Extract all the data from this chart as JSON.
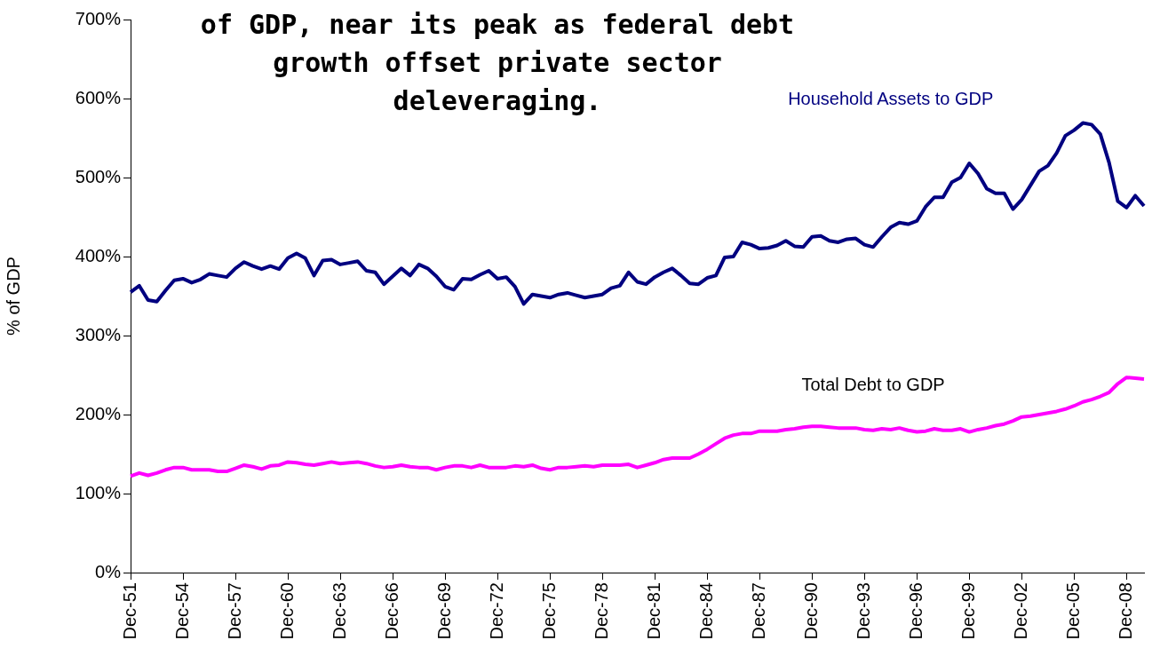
{
  "chart_data": {
    "type": "line",
    "title": "of GDP, near its peak as federal debt growth offset private sector deleveraging.",
    "ylabel": "% of GDP",
    "categories": [
      "Dec-51",
      null,
      null,
      null,
      null,
      null,
      "Dec-54",
      null,
      null,
      null,
      null,
      null,
      "Dec-57",
      null,
      null,
      null,
      null,
      null,
      "Dec-60",
      null,
      null,
      null,
      null,
      null,
      "Dec-63",
      null,
      null,
      null,
      null,
      null,
      "Dec-66",
      null,
      null,
      null,
      null,
      null,
      "Dec-69",
      null,
      null,
      null,
      null,
      null,
      "Dec-72",
      null,
      null,
      null,
      null,
      null,
      "Dec-75",
      null,
      null,
      null,
      null,
      null,
      "Dec-78",
      null,
      null,
      null,
      null,
      null,
      "Dec-81",
      null,
      null,
      null,
      null,
      null,
      "Dec-84",
      null,
      null,
      null,
      null,
      null,
      "Dec-87",
      null,
      null,
      null,
      null,
      null,
      "Dec-90",
      null,
      null,
      null,
      null,
      null,
      "Dec-93",
      null,
      null,
      null,
      null,
      null,
      "Dec-96",
      null,
      null,
      null,
      null,
      null,
      "Dec-99",
      null,
      null,
      null,
      null,
      null,
      "Dec-02",
      null,
      null,
      null,
      null,
      null,
      "Dec-05",
      null,
      null,
      null,
      null,
      null,
      "Dec-08",
      null,
      null
    ],
    "series": [
      {
        "name": "Household Assets to GDP",
        "color": "#000080",
        "values": [
          355,
          363,
          345,
          343,
          357,
          370,
          372,
          367,
          371,
          378,
          376,
          374,
          385,
          393,
          388,
          384,
          388,
          384,
          398,
          404,
          398,
          376,
          395,
          396,
          390,
          392,
          394,
          382,
          380,
          365,
          375,
          385,
          376,
          390,
          385,
          375,
          362,
          358,
          372,
          371,
          377,
          382,
          372,
          374,
          362,
          340,
          352,
          350,
          348,
          352,
          354,
          351,
          348,
          350,
          352,
          360,
          363,
          380,
          368,
          365,
          374,
          380,
          385,
          376,
          366,
          365,
          373,
          376,
          399,
          400,
          418,
          415,
          410,
          411,
          414,
          420,
          413,
          412,
          425,
          426,
          420,
          418,
          422,
          423,
          415,
          412,
          425,
          437,
          443,
          441,
          445,
          463,
          475,
          475,
          494,
          500,
          518,
          505,
          486,
          480,
          480,
          460,
          472,
          490,
          508,
          515,
          531,
          553,
          560,
          569,
          567,
          555,
          519,
          470,
          462,
          477,
          464
        ]
      },
      {
        "name": "Total Debt to GDP",
        "color": "#ff00ff",
        "values": [
          122,
          126,
          123,
          126,
          130,
          133,
          133,
          130,
          130,
          130,
          128,
          128,
          132,
          136,
          134,
          131,
          135,
          136,
          140,
          139,
          137,
          136,
          138,
          140,
          138,
          139,
          140,
          138,
          135,
          133,
          134,
          136,
          134,
          133,
          133,
          130,
          133,
          135,
          135,
          133,
          136,
          133,
          133,
          133,
          135,
          134,
          136,
          132,
          130,
          133,
          133,
          134,
          135,
          134,
          136,
          136,
          136,
          137,
          133,
          136,
          139,
          143,
          145,
          145,
          145,
          150,
          156,
          163,
          170,
          174,
          176,
          176,
          179,
          179,
          179,
          181,
          182,
          184,
          185,
          185,
          184,
          183,
          183,
          183,
          181,
          180,
          182,
          181,
          183,
          180,
          178,
          179,
          182,
          180,
          180,
          182,
          178,
          181,
          183,
          186,
          188,
          192,
          197,
          198,
          200,
          202,
          204,
          207,
          211,
          216,
          219,
          223,
          228,
          239,
          247,
          246,
          245
        ]
      }
    ],
    "ylim": [
      0,
      700
    ],
    "yticks": [
      {
        "value": 0,
        "label": "0%"
      },
      {
        "value": 100,
        "label": "100%"
      },
      {
        "value": 200,
        "label": "200%"
      },
      {
        "value": 300,
        "label": "300%"
      },
      {
        "value": 400,
        "label": "400%"
      },
      {
        "value": 500,
        "label": "500%"
      },
      {
        "value": 600,
        "label": "600%"
      },
      {
        "value": 700,
        "label": "700%"
      }
    ],
    "grid": false,
    "legend": false,
    "marker": "none",
    "line_style": "solid"
  }
}
